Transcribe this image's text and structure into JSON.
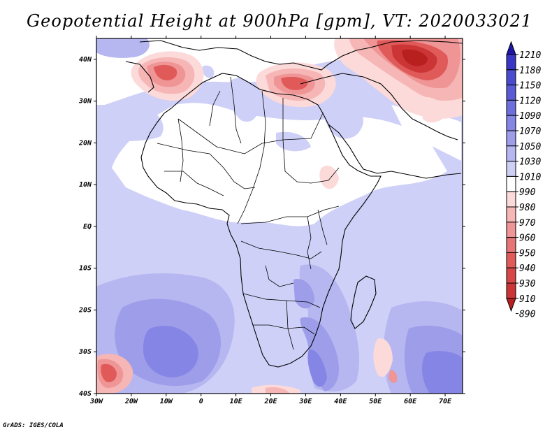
{
  "title": "Geopotential Height at 900hPa [gpm], VT: 2020033021",
  "footer": "GrADS: IGES/COLA",
  "map": {
    "lat_labels": [
      "40N",
      "30N",
      "20N",
      "10N",
      "EQ",
      "10S",
      "20S",
      "30S",
      "40S"
    ],
    "lon_labels": [
      "30W",
      "20W",
      "10W",
      "0",
      "10E",
      "20E",
      "30E",
      "40E",
      "50E",
      "60E",
      "70E"
    ],
    "lat_range": [
      -40,
      45
    ],
    "lon_range": [
      -30,
      75
    ],
    "background_color": "#cfd0f7"
  },
  "colorbar": {
    "labels": [
      "1210",
      "1180",
      "1150",
      "1120",
      "1090",
      "1070",
      "1050",
      "1030",
      "1010",
      "990",
      "980",
      "970",
      "960",
      "950",
      "940",
      "930",
      "910",
      "890"
    ],
    "colors": [
      "#1e15a8",
      "#3a35c4",
      "#4b4bcf",
      "#5a5ad6",
      "#6e6edd",
      "#8585e5",
      "#9d9dea",
      "#b6b6f0",
      "#cfcff6",
      "#ffffff",
      "#fcdada",
      "#f6b6b6",
      "#ef9595",
      "#e87575",
      "#e05a5a",
      "#d84646",
      "#cb3535",
      "#b82020"
    ]
  }
}
